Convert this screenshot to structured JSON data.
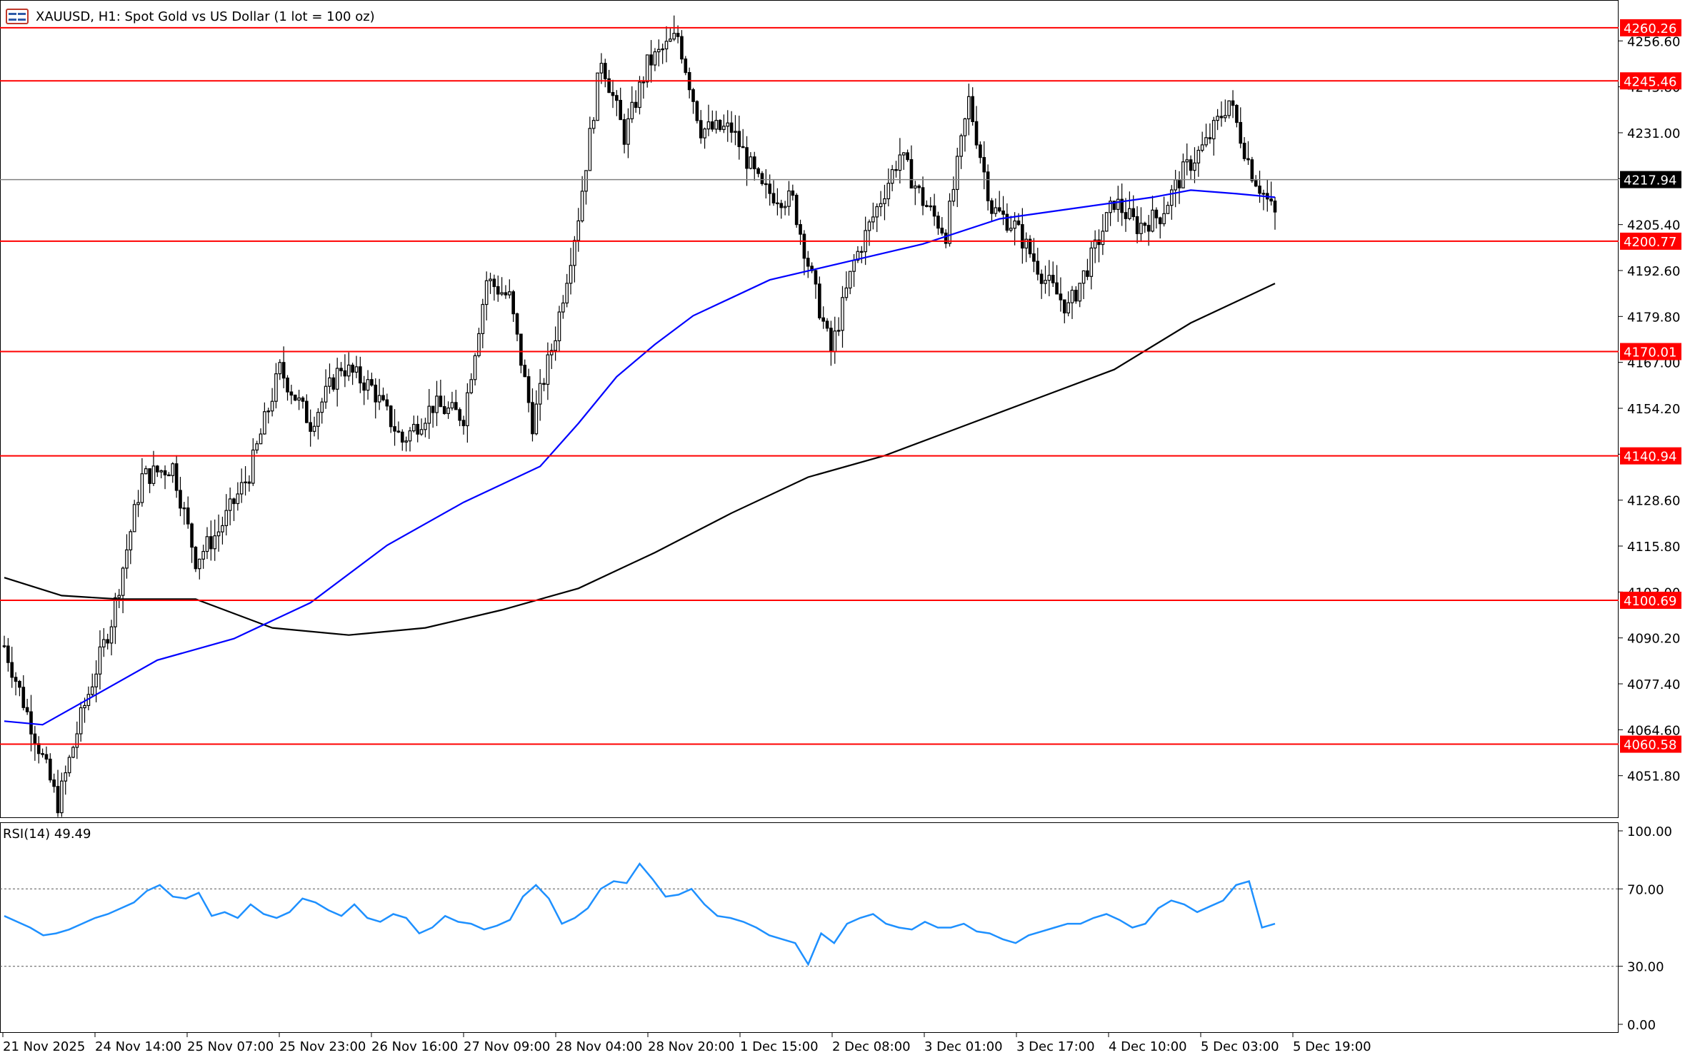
{
  "header": {
    "title": "XAUUSD, H1:  Spot Gold vs US Dollar (1 lot = 100 oz)",
    "icon": "chart-window-icon"
  },
  "colors": {
    "candle": "#000000",
    "level_line": "#ff0000",
    "level_label_bg": "#ff0000",
    "ma_fast": "#0000ff",
    "ma_slow": "#000000",
    "rsi_line": "#1e90ff",
    "current_price_line": "#808080",
    "current_price_bg": "#000000"
  },
  "chart_data": [
    {
      "type": "candlestick",
      "symbol": "XAUUSD",
      "timeframe": "H1",
      "ylim": [
        4040,
        4268
      ],
      "y_ticks": [
        "4256.60",
        "4243.80",
        "4231.00",
        "4218.20",
        "4205.40",
        "4192.60",
        "4179.80",
        "4167.00",
        "4154.20",
        "4141.40",
        "4128.60",
        "4115.80",
        "4103.00",
        "4090.20",
        "4077.40",
        "4064.60",
        "4051.80"
      ],
      "x_ticks": [
        "21 Nov 2025",
        "24 Nov 14:00",
        "25 Nov 07:00",
        "25 Nov 23:00",
        "26 Nov 16:00",
        "27 Nov 09:00",
        "28 Nov 04:00",
        "28 Nov 20:00",
        "1 Dec 15:00",
        "2 Dec 08:00",
        "3 Dec 01:00",
        "3 Dec 17:00",
        "4 Dec 10:00",
        "5 Dec 03:00",
        "5 Dec 19:00"
      ],
      "levels": [
        "4260.26",
        "4245.46",
        "4200.77",
        "4170.01",
        "4140.94",
        "4100.69",
        "4060.58"
      ],
      "current_price": "4217.94",
      "close_path": [
        {
          "x": 0,
          "y": 4088
        },
        {
          "x": 8,
          "y": 4063
        },
        {
          "x": 14,
          "y": 4044
        },
        {
          "x": 20,
          "y": 4068
        },
        {
          "x": 28,
          "y": 4095
        },
        {
          "x": 36,
          "y": 4135
        },
        {
          "x": 44,
          "y": 4138
        },
        {
          "x": 50,
          "y": 4112
        },
        {
          "x": 56,
          "y": 4120
        },
        {
          "x": 64,
          "y": 4136
        },
        {
          "x": 72,
          "y": 4165
        },
        {
          "x": 80,
          "y": 4150
        },
        {
          "x": 88,
          "y": 4166
        },
        {
          "x": 96,
          "y": 4160
        },
        {
          "x": 104,
          "y": 4145
        },
        {
          "x": 112,
          "y": 4155
        },
        {
          "x": 120,
          "y": 4152
        },
        {
          "x": 126,
          "y": 4190
        },
        {
          "x": 132,
          "y": 4185
        },
        {
          "x": 138,
          "y": 4150
        },
        {
          "x": 144,
          "y": 4175
        },
        {
          "x": 150,
          "y": 4208
        },
        {
          "x": 156,
          "y": 4252
        },
        {
          "x": 162,
          "y": 4230
        },
        {
          "x": 168,
          "y": 4250
        },
        {
          "x": 176,
          "y": 4258
        },
        {
          "x": 182,
          "y": 4232
        },
        {
          "x": 190,
          "y": 4232
        },
        {
          "x": 198,
          "y": 4215
        },
        {
          "x": 206,
          "y": 4212
        },
        {
          "x": 212,
          "y": 4186
        },
        {
          "x": 216,
          "y": 4170
        },
        {
          "x": 222,
          "y": 4195
        },
        {
          "x": 228,
          "y": 4210
        },
        {
          "x": 234,
          "y": 4225
        },
        {
          "x": 240,
          "y": 4212
        },
        {
          "x": 246,
          "y": 4203
        },
        {
          "x": 252,
          "y": 4240
        },
        {
          "x": 258,
          "y": 4210
        },
        {
          "x": 264,
          "y": 4205
        },
        {
          "x": 272,
          "y": 4190
        },
        {
          "x": 278,
          "y": 4182
        },
        {
          "x": 284,
          "y": 4196
        },
        {
          "x": 290,
          "y": 4212
        },
        {
          "x": 296,
          "y": 4205
        },
        {
          "x": 302,
          "y": 4208
        },
        {
          "x": 308,
          "y": 4220
        },
        {
          "x": 314,
          "y": 4228
        },
        {
          "x": 320,
          "y": 4240
        },
        {
          "x": 326,
          "y": 4220
        },
        {
          "x": 332,
          "y": 4208
        }
      ],
      "ma_fast": [
        {
          "x": 0,
          "y": 4067
        },
        {
          "x": 10,
          "y": 4066
        },
        {
          "x": 20,
          "y": 4072
        },
        {
          "x": 40,
          "y": 4084
        },
        {
          "x": 60,
          "y": 4090
        },
        {
          "x": 80,
          "y": 4100
        },
        {
          "x": 100,
          "y": 4116
        },
        {
          "x": 120,
          "y": 4128
        },
        {
          "x": 140,
          "y": 4138
        },
        {
          "x": 150,
          "y": 4150
        },
        {
          "x": 160,
          "y": 4163
        },
        {
          "x": 170,
          "y": 4172
        },
        {
          "x": 180,
          "y": 4180
        },
        {
          "x": 200,
          "y": 4190
        },
        {
          "x": 220,
          "y": 4195
        },
        {
          "x": 240,
          "y": 4200
        },
        {
          "x": 260,
          "y": 4207
        },
        {
          "x": 280,
          "y": 4210
        },
        {
          "x": 300,
          "y": 4213
        },
        {
          "x": 310,
          "y": 4215
        },
        {
          "x": 322,
          "y": 4214
        },
        {
          "x": 332,
          "y": 4213
        }
      ],
      "ma_slow": [
        {
          "x": 0,
          "y": 4107
        },
        {
          "x": 15,
          "y": 4102
        },
        {
          "x": 30,
          "y": 4101
        },
        {
          "x": 50,
          "y": 4101
        },
        {
          "x": 70,
          "y": 4093
        },
        {
          "x": 90,
          "y": 4091
        },
        {
          "x": 110,
          "y": 4093
        },
        {
          "x": 130,
          "y": 4098
        },
        {
          "x": 150,
          "y": 4104
        },
        {
          "x": 170,
          "y": 4114
        },
        {
          "x": 190,
          "y": 4125
        },
        {
          "x": 210,
          "y": 4135
        },
        {
          "x": 230,
          "y": 4141
        },
        {
          "x": 250,
          "y": 4149
        },
        {
          "x": 270,
          "y": 4157
        },
        {
          "x": 290,
          "y": 4165
        },
        {
          "x": 310,
          "y": 4178
        },
        {
          "x": 332,
          "y": 4189
        }
      ]
    },
    {
      "type": "line",
      "label": "RSI(14) 49.49",
      "ylim": [
        0,
        100
      ],
      "y_ticks": [
        "100.00",
        "70.00",
        "30.00",
        "0.00"
      ],
      "reference_levels": [
        70,
        30
      ],
      "values": [
        56,
        53,
        50,
        46,
        47,
        49,
        52,
        55,
        57,
        60,
        63,
        69,
        72,
        66,
        65,
        68,
        56,
        58,
        55,
        62,
        57,
        55,
        58,
        65,
        63,
        59,
        56,
        62,
        55,
        53,
        57,
        55,
        47,
        50,
        56,
        53,
        52,
        49,
        51,
        54,
        66,
        72,
        65,
        52,
        55,
        60,
        70,
        74,
        73,
        83,
        75,
        66,
        67,
        70,
        62,
        56,
        55,
        53,
        50,
        46,
        44,
        42,
        31,
        47,
        42,
        52,
        55,
        57,
        52,
        50,
        49,
        53,
        50,
        50,
        52,
        48,
        47,
        44,
        42,
        46,
        48,
        50,
        52,
        52,
        55,
        57,
        54,
        50,
        52,
        60,
        64,
        62,
        58,
        61,
        64,
        72,
        74,
        50,
        52
      ]
    }
  ]
}
